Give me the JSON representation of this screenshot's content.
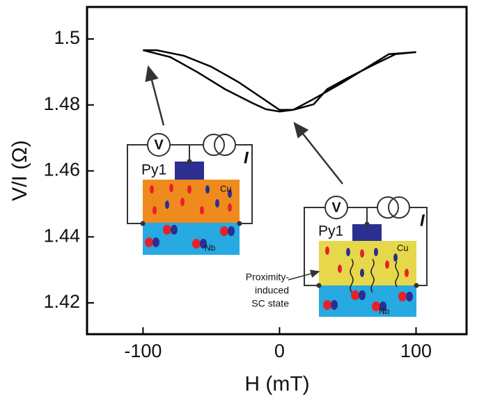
{
  "chart_data": {
    "type": "line",
    "x_label": "H (mT)",
    "y_label": "V/I (Ω)",
    "xlim": [
      -141,
      137
    ],
    "xticks": [
      -100,
      0,
      100
    ],
    "ylim": [
      1.4105,
      1.5097
    ],
    "yticks": [
      1.42,
      1.44,
      1.46,
      1.48,
      {
        "value": 1.5,
        "label": "1.5"
      }
    ],
    "series": [
      {
        "color": "#000000",
        "x": [
          -100,
          -90,
          -70,
          -50,
          -30,
          -15,
          0,
          10,
          25,
          35,
          50,
          70,
          85,
          100
        ],
        "values": [
          1.4966,
          1.4966,
          1.4949,
          1.4916,
          1.4869,
          1.4827,
          1.4785,
          1.4785,
          1.4802,
          1.4848,
          1.4882,
          1.4924,
          1.4954,
          1.496
        ]
      },
      {
        "color": "#000000",
        "x": [
          -100,
          -80,
          -60,
          -40,
          -20,
          -10,
          0,
          10,
          25,
          45,
          60,
          80,
          100
        ],
        "values": [
          1.4966,
          1.4945,
          1.4899,
          1.4848,
          1.4806,
          1.4787,
          1.478,
          1.4785,
          1.4818,
          1.4865,
          1.4903,
          1.4954,
          1.496
        ]
      }
    ],
    "annotations": {
      "voltmeter": "V",
      "current": "I",
      "ferromagnet": "Py1",
      "normal_metal": "Cu",
      "superconductor": "Nb",
      "proximity": [
        "Proximity-",
        "induced",
        "SC state"
      ]
    }
  }
}
